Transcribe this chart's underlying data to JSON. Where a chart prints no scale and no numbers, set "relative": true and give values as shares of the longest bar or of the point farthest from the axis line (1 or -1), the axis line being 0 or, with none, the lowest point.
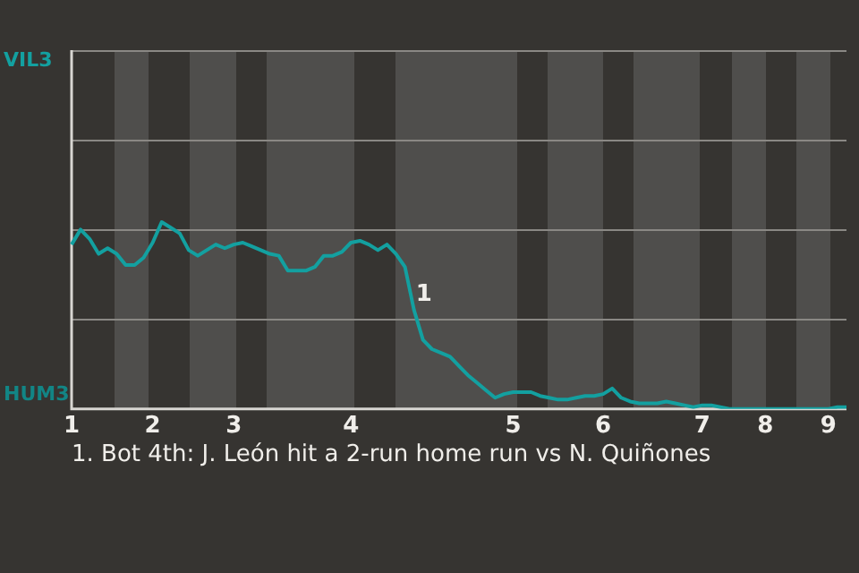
{
  "chart_data": {
    "type": "line",
    "relative": true,
    "categories": [
      "1",
      null,
      null,
      null,
      null,
      null,
      null,
      null,
      null,
      "2",
      null,
      null,
      null,
      null,
      null,
      null,
      null,
      null,
      "3",
      null,
      null,
      null,
      null,
      null,
      null,
      null,
      null,
      null,
      null,
      null,
      null,
      "4",
      null,
      null,
      null,
      null,
      null,
      null,
      null,
      null,
      null,
      null,
      null,
      null,
      null,
      null,
      null,
      null,
      null,
      "5",
      null,
      null,
      null,
      null,
      null,
      null,
      null,
      null,
      null,
      "6",
      null,
      null,
      null,
      null,
      null,
      null,
      null,
      null,
      null,
      null,
      "7",
      null,
      null,
      null,
      null,
      null,
      null,
      "8",
      null,
      null,
      null,
      null,
      null,
      null,
      "9",
      null,
      null
    ],
    "series": [
      {
        "color": "#13a0a0",
        "values": [
          0.88,
          0.96,
          0.91,
          0.83,
          0.86,
          0.83,
          0.77,
          0.77,
          0.81,
          0.89,
          1,
          0.97,
          0.94,
          0.85,
          0.82,
          0.85,
          0.88,
          0.86,
          0.88,
          0.89,
          0.87,
          0.85,
          0.83,
          0.82,
          0.74,
          0.74,
          0.74,
          0.76,
          0.82,
          0.82,
          0.84,
          0.89,
          0.9,
          0.88,
          0.85,
          0.88,
          0.83,
          0.76,
          0.53,
          0.37,
          0.32,
          0.3,
          0.28,
          0.23,
          0.18,
          0.14,
          0.1,
          0.06,
          0.08,
          0.09,
          0.09,
          0.09,
          0.07,
          0.06,
          0.05,
          0.05,
          0.06,
          0.07,
          0.07,
          0.08,
          0.11,
          0.06,
          0.04,
          0.03,
          0.03,
          0.03,
          0.04,
          0.03,
          0.02,
          0.01,
          0.02,
          0.02,
          0.01,
          0,
          0,
          0,
          0,
          0,
          0,
          0,
          0,
          0,
          0,
          0,
          0,
          0.01,
          0.01
        ]
      }
    ],
    "annotations": [
      "VIL3",
      "HUM3",
      {
        "text": "1",
        "y": 0.53
      },
      "1. Bot 4th: J. León hit a 2-run home run vs N. Quiñones"
    ],
    "ref_lines": [
      {
        "axis": "y",
        "value": 0.48,
        "color": "#8a8884"
      },
      {
        "axis": "y",
        "value": 0.96,
        "color": "#8a8884"
      },
      {
        "axis": "y",
        "value": 1.44,
        "color": "#8a8884"
      },
      {
        "axis": "y",
        "value": 1.92,
        "color": "#8a8884"
      }
    ],
    "marker": "none",
    "line_style": "solid",
    "legend": false
  }
}
